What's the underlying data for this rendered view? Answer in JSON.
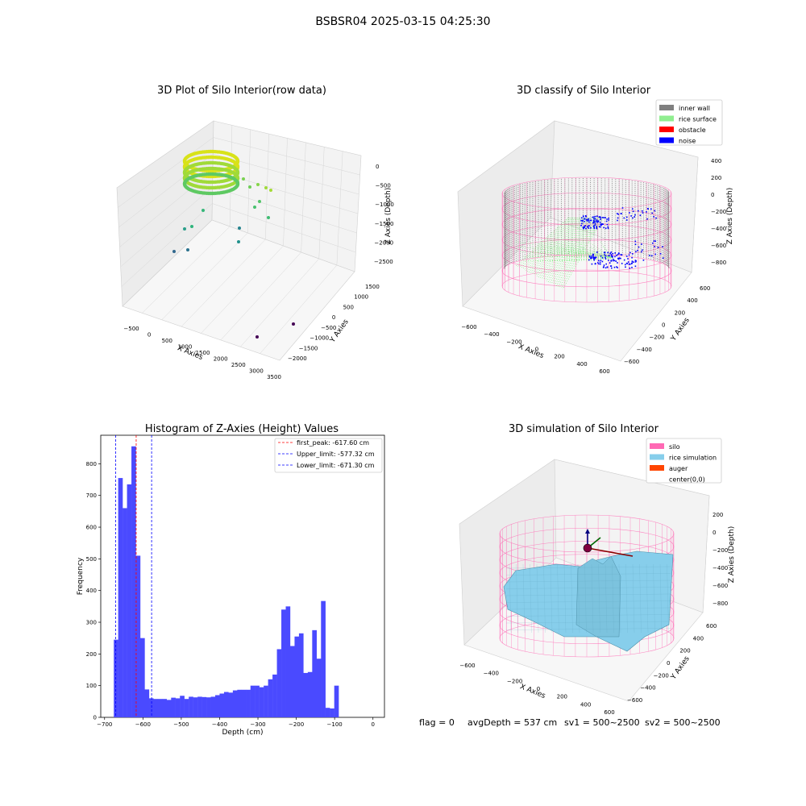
{
  "figure": {
    "suptitle": "BSBSR04 2025-03-15 04:25:30",
    "status": {
      "flag": "flag = 0",
      "avg_depth": "avgDepth = 537 cm",
      "sv1": "sv1 = 500~2500",
      "sv2": "sv2 = 500~2500"
    }
  },
  "colors": {
    "inner_wall": "#808080",
    "rice_surface": "#90ee90",
    "obstacle": "#ff0000",
    "noise": "#0000ff",
    "silo": "#ff69b4",
    "rice_simulation": "#87ceeb",
    "auger": "#ff4500",
    "hist_bar": "#4a4aff",
    "peak_line": "#ff0000",
    "limit_line": "#0000ff"
  },
  "panels": {
    "raw": {
      "title": "3D Plot of Silo Interior(row data)",
      "xlabel": "X Axies",
      "ylabel": "Y Axies",
      "zlabel": "Z Axies (Depth)",
      "xticks": [
        "-500",
        "0",
        "500",
        "1000",
        "1500",
        "2000",
        "2500",
        "3000",
        "3500"
      ],
      "yticks": [
        "1500",
        "1000",
        "500",
        "0",
        "-500",
        "-1000",
        "-1500",
        "-2000"
      ],
      "zticks": [
        "0",
        "-500",
        "-1000",
        "-1500",
        "-2000",
        "-2500"
      ]
    },
    "classify": {
      "title": "3D classify of Silo Interior",
      "xlabel": "X Axies",
      "ylabel": "Y Axies",
      "zlabel": "Z Axies (Depth)",
      "xticks": [
        "-600",
        "-400",
        "-200",
        "0",
        "200",
        "400",
        "600"
      ],
      "yticks": [
        "600",
        "400",
        "200",
        "0",
        "-200",
        "-400",
        "-600"
      ],
      "zticks": [
        "400",
        "200",
        "0",
        "-200",
        "-400",
        "-600",
        "-800"
      ],
      "legend": [
        {
          "label": "inner wall",
          "color": "#808080"
        },
        {
          "label": "rice surface",
          "color": "#90ee90"
        },
        {
          "label": "obstacle",
          "color": "#ff0000"
        },
        {
          "label": "noise",
          "color": "#0000ff"
        }
      ]
    },
    "simulation": {
      "title": "3D simulation of Silo Interior",
      "xlabel": "X Axies",
      "ylabel": "Y Axies",
      "zlabel": "Z Axies (Depth)",
      "xticks": [
        "-600",
        "-400",
        "-200",
        "0",
        "200",
        "400",
        "600"
      ],
      "yticks": [
        "600",
        "400",
        "200",
        "0",
        "-200",
        "-400",
        "-600"
      ],
      "zticks": [
        "200",
        "0",
        "-200",
        "-400",
        "-600",
        "-800"
      ],
      "legend": [
        {
          "label": "silo",
          "color": "#ff69b4"
        },
        {
          "label": "rice simulation",
          "color": "#87ceeb"
        },
        {
          "label": "auger",
          "color": "#ff4500"
        },
        {
          "label": "center(0,0)",
          "color": ""
        }
      ]
    }
  },
  "chart_data": {
    "type": "bar",
    "title": "Histogram of Z-Axies (Height) Values",
    "xlabel": "Depth (cm)",
    "ylabel": "Frequency",
    "xlim": [
      -710,
      30
    ],
    "ylim": [
      0,
      890
    ],
    "xticks": [
      -700,
      -600,
      -500,
      -400,
      -300,
      -200,
      -100,
      0
    ],
    "yticks": [
      0,
      100,
      200,
      300,
      400,
      500,
      600,
      700,
      800
    ],
    "bin_width": 11.5,
    "bin_start": -676,
    "values": [
      245,
      755,
      660,
      735,
      855,
      510,
      250,
      88,
      60,
      58,
      58,
      58,
      55,
      62,
      60,
      68,
      58,
      65,
      63,
      65,
      64,
      63,
      65,
      70,
      75,
      80,
      78,
      85,
      87,
      87,
      87,
      100,
      100,
      95,
      100,
      120,
      135,
      215,
      340,
      350,
      225,
      255,
      265,
      140,
      143,
      275,
      185,
      367,
      30,
      28,
      100
    ],
    "lines": [
      {
        "label": "first_peak: -617.60 cm",
        "x": -617.6,
        "color": "#ff0000"
      },
      {
        "label": "Upper_limit: -577.32 cm",
        "x": -577.32,
        "color": "#0000ff"
      },
      {
        "label": "Lower_limit: -671.30 cm",
        "x": -671.3,
        "color": "#0000ff"
      }
    ],
    "legend": "top-right",
    "grid": false
  }
}
